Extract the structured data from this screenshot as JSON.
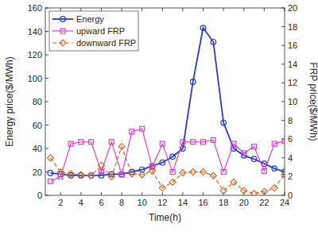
{
  "chart_data": {
    "type": "line",
    "x_label": "Time(h)",
    "y_label": "Energy price($/MWh)",
    "y2_label": "FRP price($/MWh)",
    "x": [
      1,
      2,
      3,
      4,
      5,
      6,
      7,
      8,
      9,
      10,
      11,
      12,
      13,
      14,
      15,
      16,
      17,
      18,
      19,
      20,
      21,
      22,
      23,
      24
    ],
    "xlim": [
      0.5,
      24
    ],
    "xticks": [
      2,
      4,
      6,
      8,
      10,
      12,
      14,
      16,
      18,
      20,
      22,
      24
    ],
    "ylim": [
      0,
      160
    ],
    "yticks": [
      0,
      20,
      40,
      60,
      80,
      100,
      120,
      140,
      160
    ],
    "y2lim": [
      0,
      20
    ],
    "y2ticks": [
      0,
      2,
      4,
      6,
      8,
      10,
      12,
      14,
      16,
      18,
      20
    ],
    "legend": "upper left",
    "grid": false,
    "series": [
      {
        "name": "Energy",
        "color": "#2a3cc8",
        "marker": "circle",
        "line_style": "solid",
        "values": [
          19,
          18,
          17,
          17,
          17,
          17,
          18,
          18,
          20,
          22,
          25,
          28,
          33,
          40,
          97,
          143,
          131,
          62,
          40,
          34,
          31,
          27,
          23,
          20
        ]
      },
      {
        "name": "upward FRP",
        "color": "#e43ed0",
        "marker": "square",
        "line_style": "solid",
        "axis": "y2",
        "values": [
          1.5,
          2,
          5.5,
          5.7,
          5.7,
          2.5,
          5.7,
          2.2,
          6.8,
          7.1,
          3,
          5.5,
          2.5,
          5.7,
          5.7,
          5.7,
          5.9,
          2.5,
          5.5,
          4.5,
          5.2,
          2.6,
          5.5,
          5.8
        ]
      },
      {
        "name": "downward FRP",
        "color": "#d86a2a",
        "marker": "diamond",
        "line_style": "dashed",
        "axis": "y2",
        "values": [
          4,
          2.5,
          2.3,
          2.2,
          2.1,
          3.2,
          2,
          5.2,
          2.3,
          2.2,
          2.6,
          0.8,
          1.4,
          2.4,
          2.5,
          2.5,
          2.1,
          0.5,
          1.4,
          0.5,
          0.2,
          0.4,
          0.8,
          2.2
        ]
      }
    ]
  }
}
